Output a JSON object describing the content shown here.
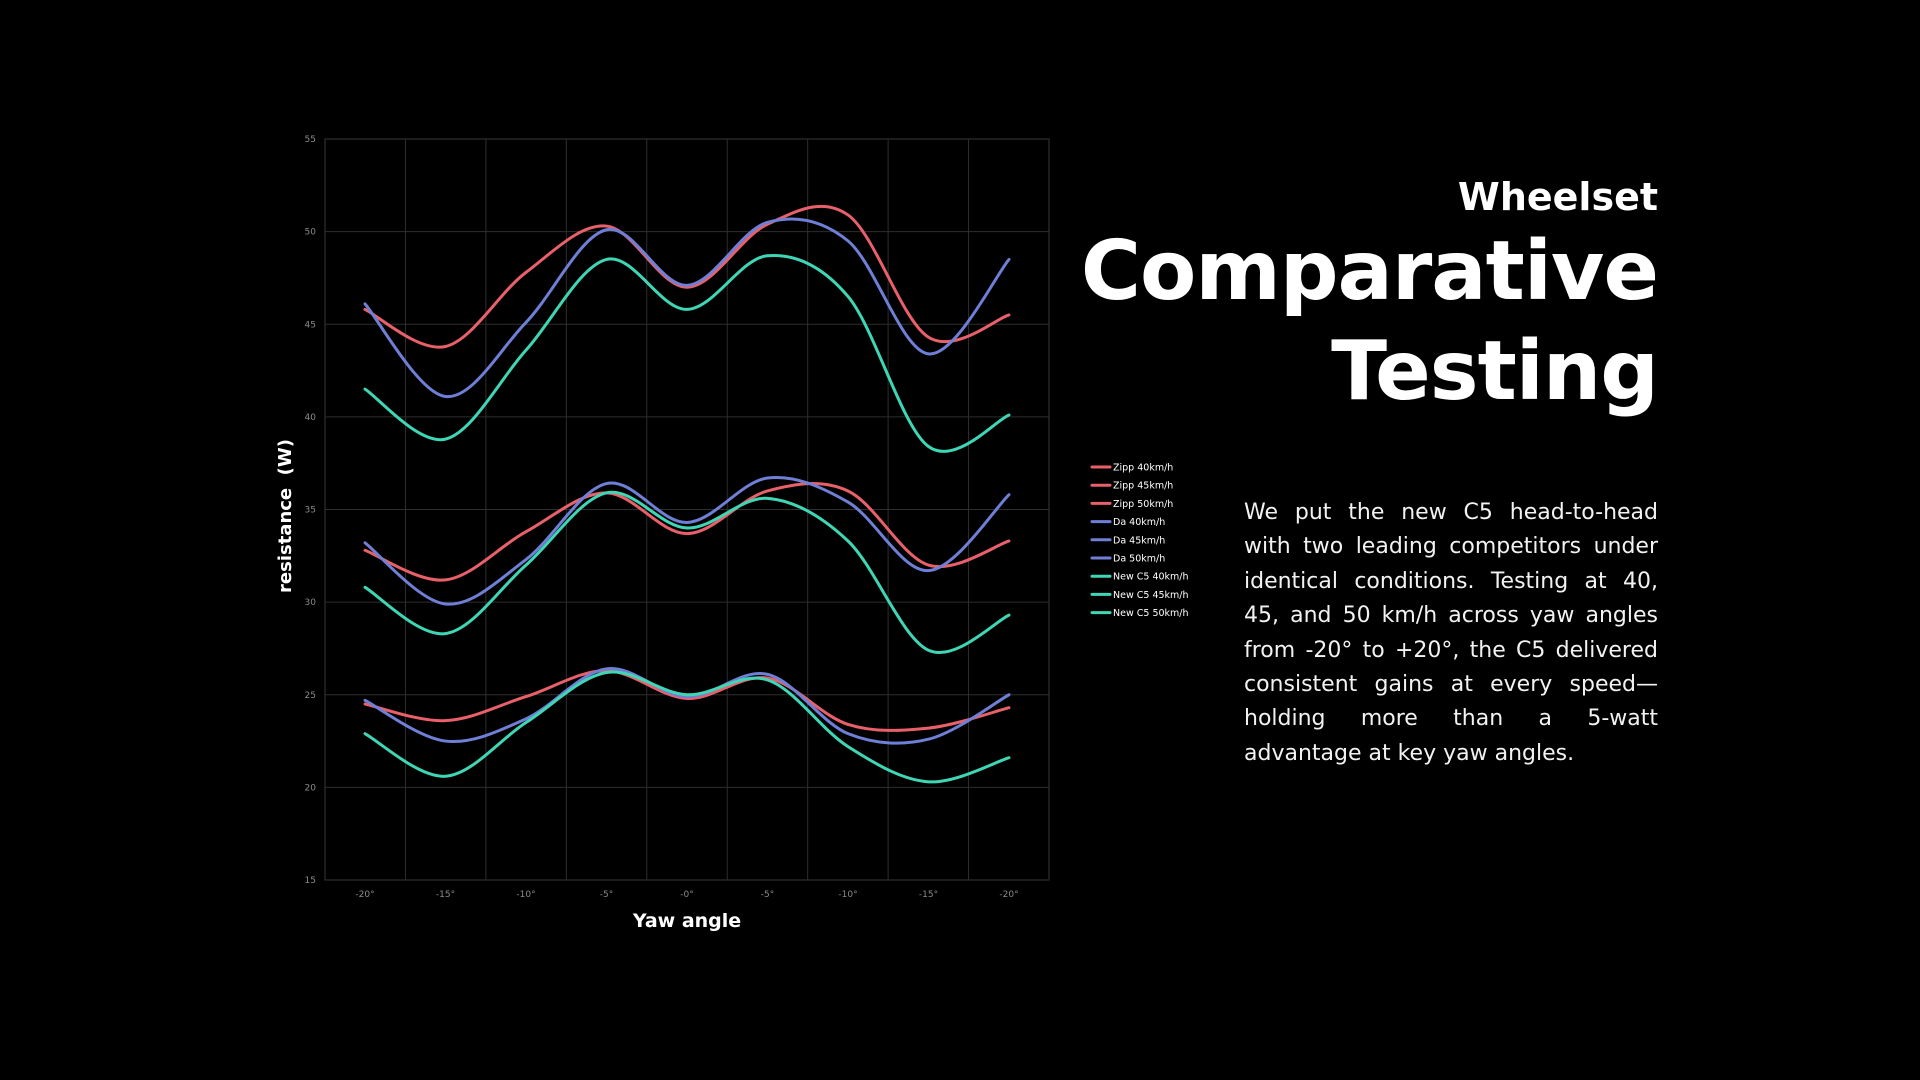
{
  "heading": {
    "subtitle": "Wheelset",
    "title_line1": "Comparative",
    "title_line2": "Testing"
  },
  "description": "We put the new C5 head-to-head with two leading competitors under identical conditions. Testing at 40, 45, and 50 km/h across yaw angles from -20° to +20°, the C5 delivered consistent gains at every speed—holding more than a 5-watt advantage at key yaw angles.",
  "colors": {
    "background": "#000000",
    "grid": "#2e2e2e",
    "zipp": "#e8606a",
    "da": "#6f7fd6",
    "c5": "#3ed6b4",
    "tick_text": "#8a8a8a"
  },
  "chart_data": {
    "type": "line",
    "xlabel": "Yaw angle",
    "ylabel": "resistance  (W)",
    "categories": [
      "-20°",
      "-15°",
      "-10°",
      "-5°",
      "-0°",
      "-5°",
      "-10°",
      "-15°",
      "-20°"
    ],
    "ylim": [
      15,
      55
    ],
    "yticks": [
      15,
      20,
      25,
      30,
      35,
      40,
      45,
      50,
      55
    ],
    "grid": true,
    "legend_position": "right",
    "series": [
      {
        "name": "Zipp 40km/h",
        "color": "#e8606a",
        "values": [
          24.5,
          23.6,
          24.9,
          26.3,
          24.8,
          25.9,
          23.4,
          23.2,
          24.3
        ]
      },
      {
        "name": "Zipp 45km/h",
        "color": "#e8606a",
        "values": [
          32.8,
          31.2,
          33.8,
          35.9,
          33.7,
          36.0,
          36.0,
          32.0,
          33.3
        ]
      },
      {
        "name": "Zipp 50km/h",
        "color": "#e8606a",
        "values": [
          45.8,
          43.8,
          47.8,
          50.3,
          47.0,
          50.4,
          50.9,
          44.3,
          45.5
        ]
      },
      {
        "name": "Da 40km/h",
        "color": "#6f7fd6",
        "values": [
          24.7,
          22.5,
          23.7,
          26.4,
          24.9,
          26.1,
          22.9,
          22.6,
          25.0
        ]
      },
      {
        "name": "Da 45km/h",
        "color": "#6f7fd6",
        "values": [
          33.2,
          29.9,
          32.3,
          36.4,
          34.3,
          36.7,
          35.4,
          31.7,
          35.8
        ]
      },
      {
        "name": "Da 50km/h",
        "color": "#6f7fd6",
        "values": [
          46.1,
          41.1,
          45.1,
          50.1,
          47.1,
          50.5,
          49.5,
          43.4,
          48.5
        ]
      },
      {
        "name": "New C5 40km/h",
        "color": "#3ed6b4",
        "values": [
          22.9,
          20.6,
          23.5,
          26.2,
          25.0,
          25.8,
          22.2,
          20.3,
          21.6
        ]
      },
      {
        "name": "New C5 45km/h",
        "color": "#3ed6b4",
        "values": [
          30.8,
          28.3,
          32.0,
          35.9,
          34.0,
          35.6,
          33.3,
          27.4,
          29.3
        ]
      },
      {
        "name": "New C5 50km/h",
        "color": "#3ed6b4",
        "values": [
          41.5,
          38.8,
          43.6,
          48.5,
          45.8,
          48.7,
          46.5,
          38.4,
          40.1
        ]
      }
    ]
  }
}
